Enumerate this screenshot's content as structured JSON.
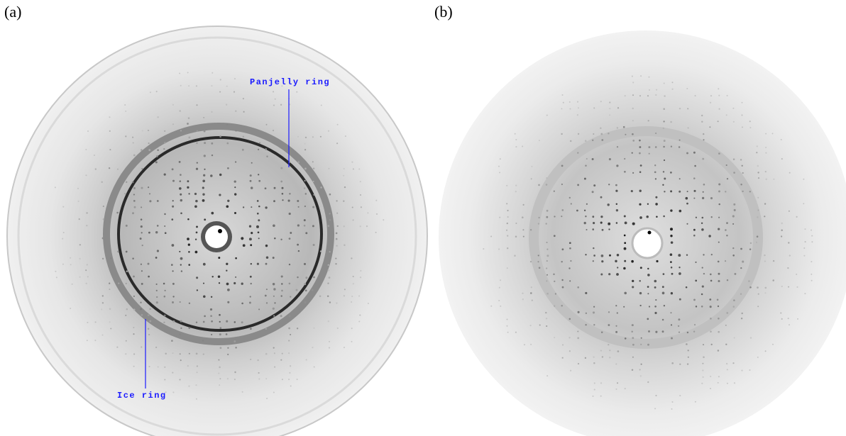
{
  "panels": [
    {
      "label": "(a)",
      "annotations": [
        {
          "text": "Panjelly ring"
        },
        {
          "text": "Ice ring"
        }
      ]
    },
    {
      "label": "(b)"
    }
  ]
}
